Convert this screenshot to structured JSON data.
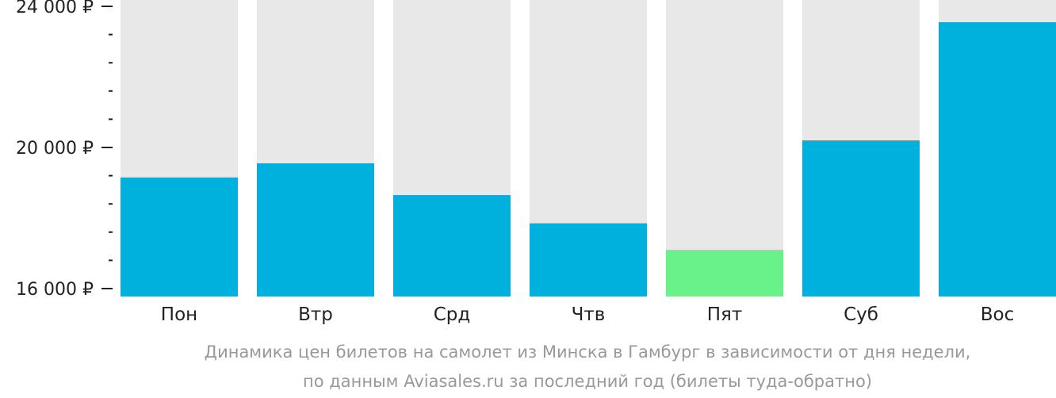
{
  "chart_data": {
    "type": "bar",
    "categories": [
      "Пон",
      "Втр",
      "Срд",
      "Чтв",
      "Пят",
      "Суб",
      "Вос"
    ],
    "values": [
      19150,
      19550,
      18650,
      17850,
      17100,
      20200,
      23550
    ],
    "highlight_index": 4,
    "ylim": [
      16000,
      24000
    ],
    "yticks": [
      {
        "value": 16000,
        "label": "16 000 ₽"
      },
      {
        "value": 20000,
        "label": "20 000 ₽"
      },
      {
        "value": 24000,
        "label": "24 000 ₽"
      }
    ],
    "minor_tick_step": 800,
    "colors": {
      "bar": "#00b0dd",
      "bar_highlight": "#6af28a",
      "bar_background": "#e8e8e8",
      "axis": "#222222"
    },
    "caption": {
      "line1": "Динамика цен билетов на самолет из Минска в Гамбург в зависимости от дня недели,",
      "line2": "по данным Aviasales.ru за последний год (билеты туда-обратно)"
    }
  }
}
